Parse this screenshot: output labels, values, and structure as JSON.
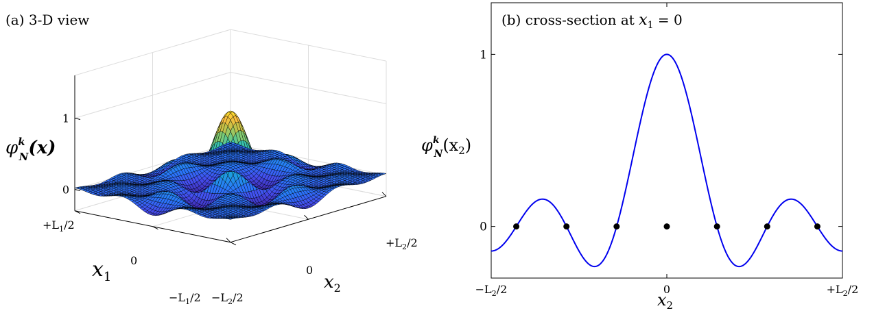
{
  "chart_data": [
    {
      "type": "surface",
      "panel_title": "(a) 3-D view",
      "zlabel_main": "φ",
      "zlabel_super": "k",
      "zlabel_sub": "N",
      "zlabel_arg": "(x)",
      "xlabel_main": "x",
      "xlabel_sub": "1",
      "ylabel_main": "x",
      "ylabel_sub": "2",
      "z_ticks": [
        {
          "value": 0,
          "label": "0"
        },
        {
          "value": 1,
          "label": "1"
        }
      ],
      "zlim": [
        -0.3,
        1.6
      ],
      "x1_ticks": [
        "+L1/2",
        "0",
        "−L1/2"
      ],
      "x1_ticks_display": [
        {
          "pre": "+L",
          "sub": "1",
          "post": "/2"
        },
        {
          "pre": "0",
          "sub": "",
          "post": ""
        },
        {
          "pre": "−L",
          "sub": "1",
          "post": "/2"
        }
      ],
      "x2_ticks_display": [
        {
          "pre": "−L",
          "sub": "2",
          "post": "/2"
        },
        {
          "pre": "0",
          "sub": "",
          "post": ""
        },
        {
          "pre": "+L",
          "sub": "2",
          "post": "/2"
        }
      ],
      "description_of_values": "separable Dirichlet-kernel surface, peak value 1 at origin",
      "peak": 1,
      "colormap": "parula"
    },
    {
      "type": "line",
      "panel_title_pre": "(b) cross-section at ",
      "panel_title_var": "x",
      "panel_title_sub": "1",
      "panel_title_post": " = 0",
      "ylabel_main": "φ",
      "ylabel_super": "k",
      "ylabel_sub": "N",
      "ylabel_arg": "(x",
      "ylabel_arg_sub": "2",
      "ylabel_arg_post": ")",
      "xlabel_main": "x",
      "xlabel_sub": "2",
      "xlim": [
        -0.5,
        0.5
      ],
      "ylim": [
        -0.3,
        1.3
      ],
      "x_ticks": [
        {
          "value": -0.5,
          "pre": "−L",
          "sub": "2",
          "post": "/2"
        },
        {
          "value": 0,
          "pre": "0",
          "sub": "",
          "post": ""
        },
        {
          "value": 0.5,
          "pre": "+L",
          "sub": "2",
          "post": "/2"
        }
      ],
      "y_ticks": [
        {
          "value": 0,
          "label": "0"
        },
        {
          "value": 1,
          "label": "1"
        }
      ],
      "series": [
        {
          "color": "#0000ee",
          "x_start": -0.5,
          "x_end": 0.5,
          "peak": 1
        }
      ],
      "zero_points": {
        "x": [
          -0.4286,
          -0.2857,
          -0.1429,
          0,
          0.1429,
          0.2857,
          0.4286
        ],
        "y": [
          0,
          0,
          0,
          0,
          0,
          0,
          0
        ],
        "color": "#000000"
      },
      "grid": false
    }
  ]
}
